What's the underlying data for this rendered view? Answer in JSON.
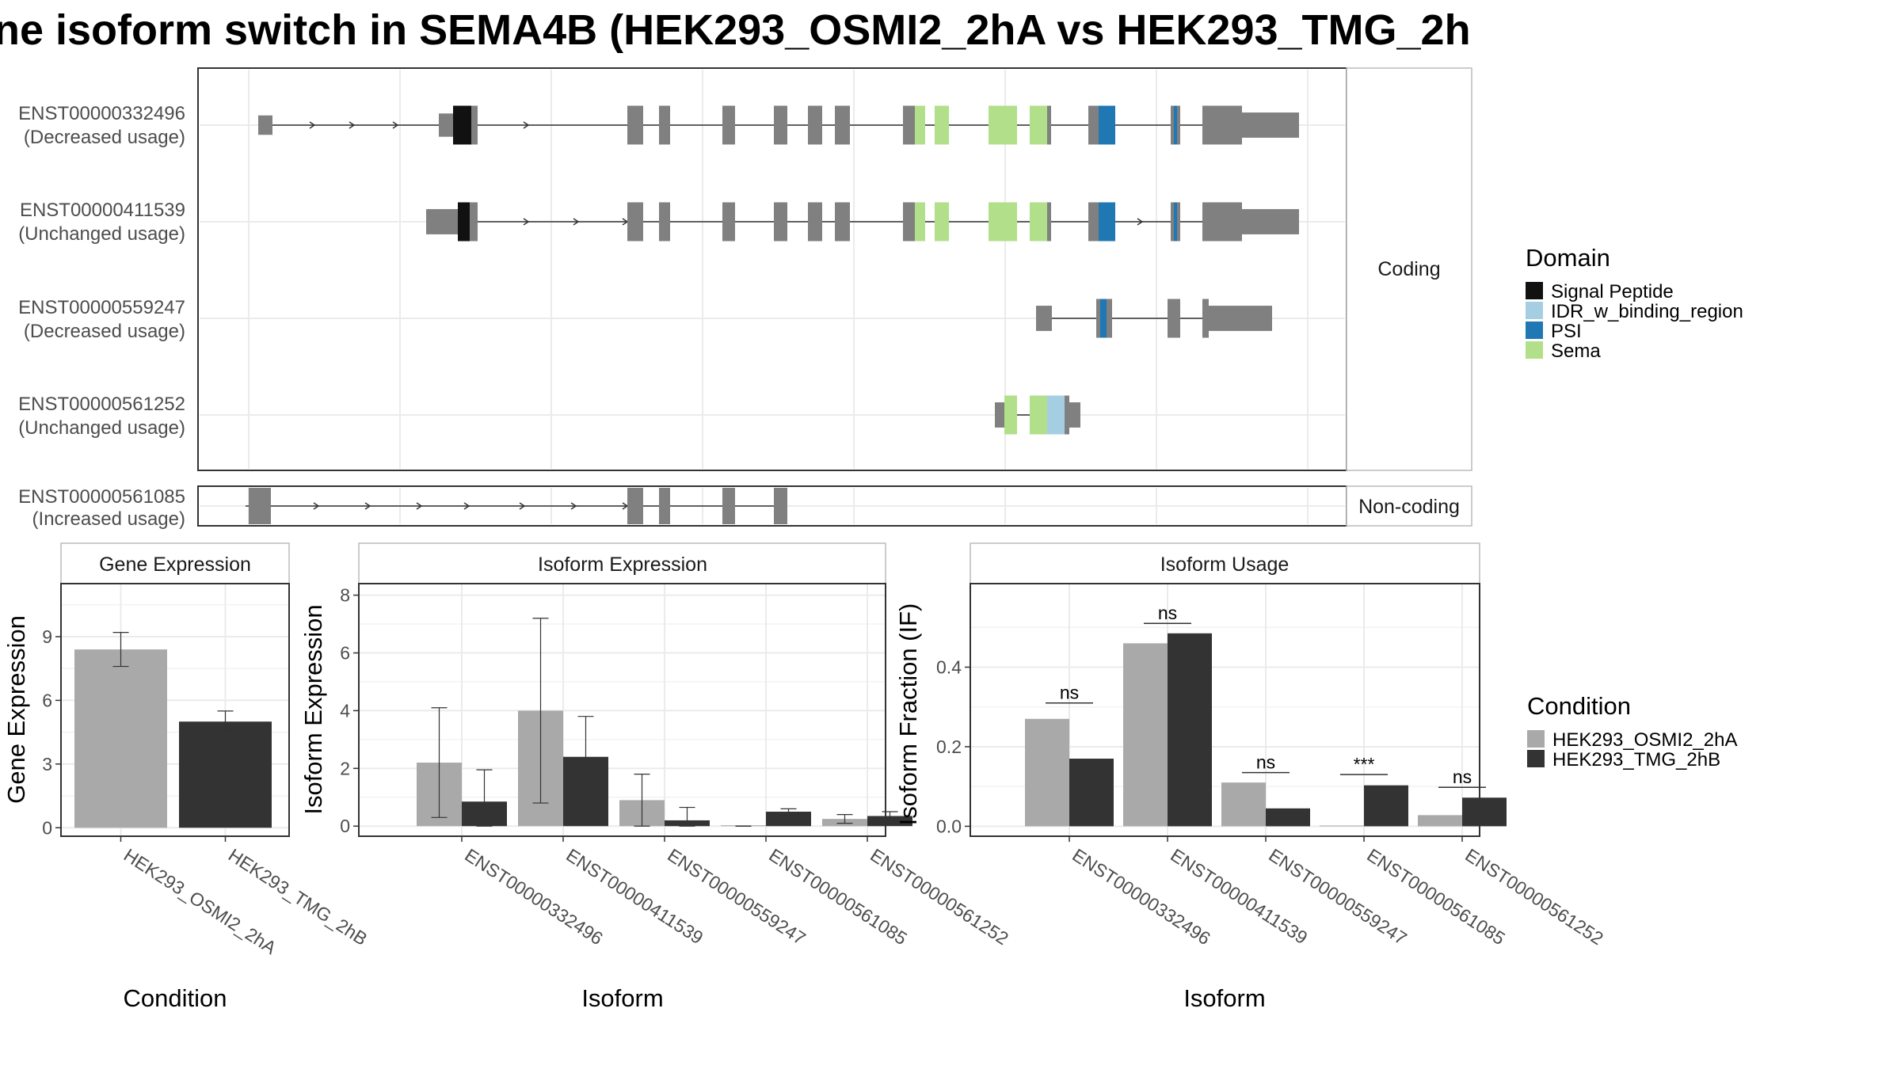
{
  "title": "ne isoform switch in SEMA4B (HEK293_OSMI2_2hA vs HEK293_TMG_2h",
  "colors": {
    "exon": "#808080",
    "signal_peptide": "#111111",
    "idr": "#a6cee3",
    "psi": "#1f78b4",
    "sema": "#b2df8a",
    "cond_a": "#a9a9a9",
    "cond_b": "#333333"
  },
  "structure": {
    "facets": {
      "coding": "Coding",
      "noncoding": "Non-coding"
    },
    "transcripts": [
      {
        "id": "ENST00000332496",
        "usage": "(Decreased usage)"
      },
      {
        "id": "ENST00000411539",
        "usage": "(Unchanged usage)"
      },
      {
        "id": "ENST00000559247",
        "usage": "(Decreased usage)"
      },
      {
        "id": "ENST00000561252",
        "usage": "(Unchanged usage)"
      },
      {
        "id": "ENST00000561085",
        "usage": "(Increased usage)"
      }
    ]
  },
  "legend_domain": {
    "title": "Domain",
    "items": [
      {
        "label": "Signal Peptide",
        "color": "#111111"
      },
      {
        "label": "IDR_w_binding_region",
        "color": "#a6cee3"
      },
      {
        "label": "PSI",
        "color": "#1f78b4"
      },
      {
        "label": "Sema",
        "color": "#b2df8a"
      }
    ]
  },
  "legend_condition": {
    "title": "Condition",
    "items": [
      {
        "label": "HEK293_OSMI2_2hA",
        "color": "#a9a9a9"
      },
      {
        "label": "HEK293_TMG_2hB",
        "color": "#333333"
      }
    ]
  },
  "chart_data": [
    {
      "type": "bar",
      "title": "Gene Expression",
      "xlabel": "Condition",
      "ylabel": "Gene Expression",
      "categories": [
        "HEK293_OSMI2_2hA",
        "HEK293_TMG_2hB"
      ],
      "values": [
        8.4,
        5.0
      ],
      "errors": [
        [
          7.6,
          9.2
        ],
        [
          4.6,
          5.5
        ]
      ],
      "yticks": [
        0,
        3,
        6,
        9
      ],
      "ylim": [
        -0.4,
        11.5
      ],
      "grid": true
    },
    {
      "type": "bar",
      "title": "Isoform Expression",
      "xlabel": "Isoform",
      "ylabel": "Isoform Expression",
      "categories": [
        "ENST00000332496",
        "ENST00000411539",
        "ENST00000559247",
        "ENST00000561085",
        "ENST00000561252"
      ],
      "series": [
        {
          "name": "HEK293_OSMI2_2hA",
          "values": [
            2.2,
            4.0,
            0.9,
            0.0,
            0.25
          ],
          "errors": [
            [
              0.3,
              4.1
            ],
            [
              0.8,
              7.2
            ],
            [
              0.0,
              1.8
            ],
            [
              0.0,
              0.0
            ],
            [
              0.1,
              0.4
            ]
          ]
        },
        {
          "name": "HEK293_TMG_2hB",
          "values": [
            0.85,
            2.4,
            0.2,
            0.5,
            0.35
          ],
          "errors": [
            [
              0.0,
              1.95
            ],
            [
              1.05,
              3.8
            ],
            [
              0.0,
              0.65
            ],
            [
              0.4,
              0.6
            ],
            [
              0.2,
              0.5
            ]
          ]
        }
      ],
      "yticks": [
        0,
        2,
        4,
        6,
        8
      ],
      "ylim": [
        -0.35,
        8.4
      ],
      "grid": true
    },
    {
      "type": "bar",
      "title": "Isoform Usage",
      "xlabel": "Isoform",
      "ylabel": "Isoform Fraction (IF)",
      "categories": [
        "ENST00000332496",
        "ENST00000411539",
        "ENST00000559247",
        "ENST00000561085",
        "ENST00000561252"
      ],
      "series": [
        {
          "name": "HEK293_OSMI2_2hA",
          "values": [
            0.27,
            0.46,
            0.11,
            0.0,
            0.028
          ]
        },
        {
          "name": "HEK293_TMG_2hB",
          "values": [
            0.17,
            0.485,
            0.045,
            0.103,
            0.072
          ]
        }
      ],
      "significance": [
        {
          "label": "ns",
          "y": 0.31
        },
        {
          "label": "ns",
          "y": 0.51
        },
        {
          "label": "ns",
          "y": 0.135
        },
        {
          "label": "***",
          "y": 0.13
        },
        {
          "label": "ns",
          "y": 0.098
        }
      ],
      "yticks": [
        0.0,
        0.2,
        0.4
      ],
      "ylim": [
        -0.025,
        0.61
      ],
      "grid": true
    }
  ]
}
